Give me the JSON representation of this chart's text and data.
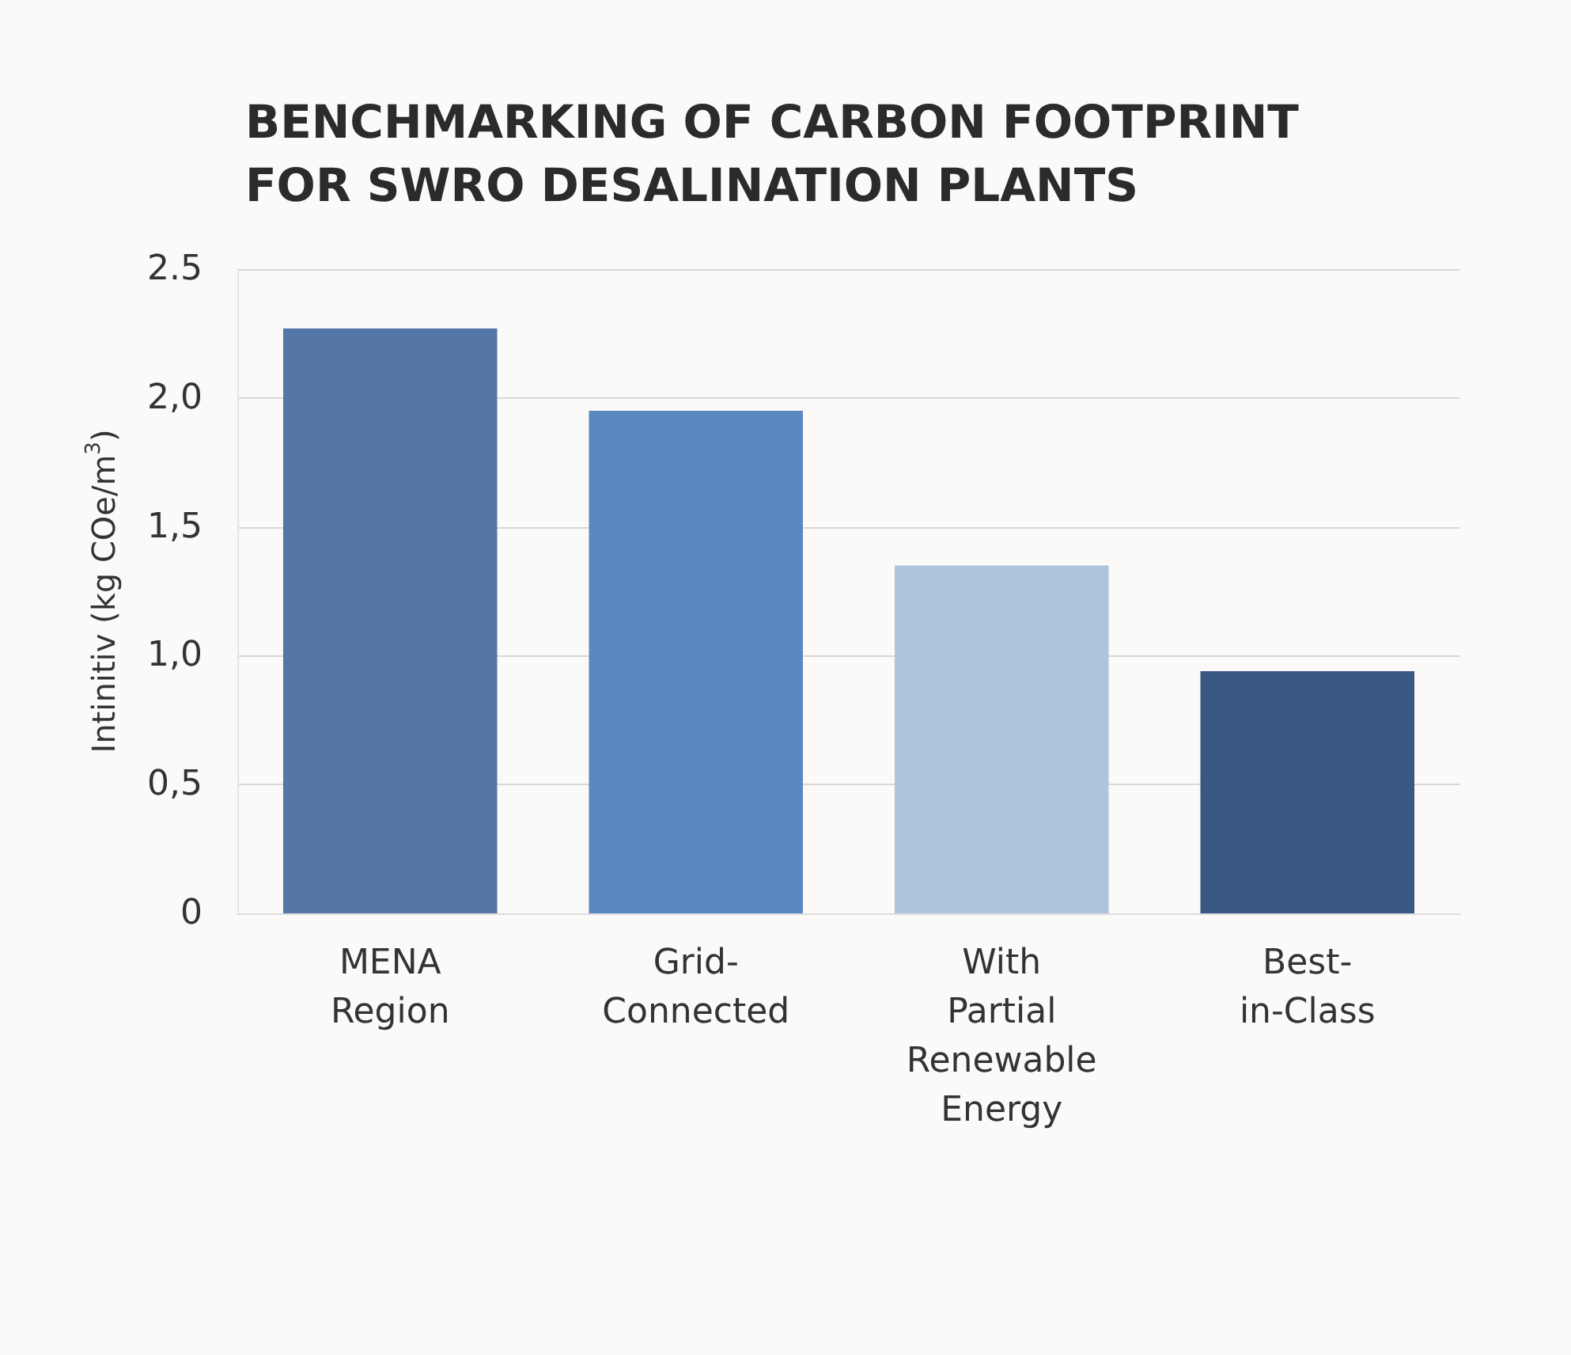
{
  "chart_data": {
    "type": "bar",
    "title": "BENCHMARKING OF CARBON FOOTPRINT\nFOR SWRO DESALINATION PLANTS",
    "ylabel": "Intinitiv (kg COe/m$^{3}$)",
    "categories": [
      "MENA\nRegion",
      "Grid-\nConnected",
      "With\nPartial\nRenewable\nEnergy",
      "Best-\nin-Class"
    ],
    "values": [
      2.27,
      1.95,
      1.35,
      0.94
    ],
    "colors": [
      "#5477a8",
      "#5b88c0",
      "#aec4dd",
      "#3a5884"
    ],
    "ylim": [
      0,
      2.5
    ],
    "yticks": [
      {
        "value": 0,
        "label": "0"
      },
      {
        "value": 0.5,
        "label": "0,5"
      },
      {
        "value": 1,
        "label": "1,0"
      },
      {
        "value": 1.5,
        "label": "1,5"
      },
      {
        "value": 2,
        "label": "2,0"
      },
      {
        "value": 2.5,
        "label": "2.5"
      }
    ],
    "grid": "y"
  }
}
